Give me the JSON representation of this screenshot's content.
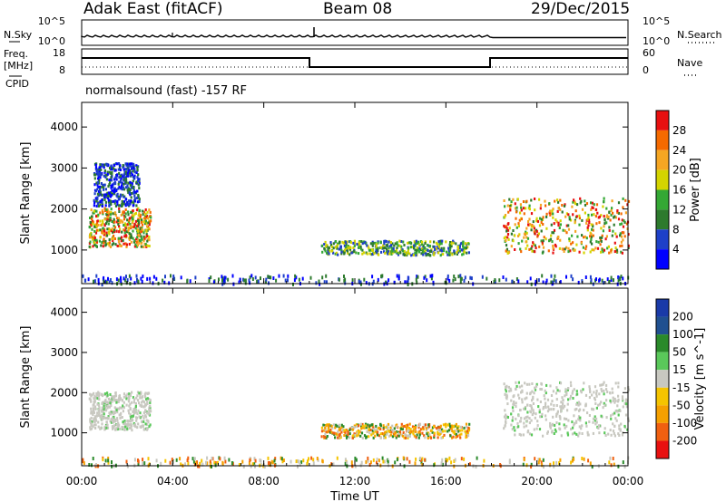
{
  "header": {
    "station": "Adak East (fitACF)",
    "beam": "Beam 08",
    "date": "29/Dec/2015"
  },
  "strips": {
    "nsky_label": "N.Sky",
    "nsearch_label": "N.Search",
    "freq_label_line1": "Freq.",
    "freq_label_line2": "[MHz]",
    "nave_label": "Nave",
    "cpid_label": "CPID",
    "cpid_text": "normalsound (fast) -157 RF",
    "noise_ticks_left": [
      "10^5",
      "10^0"
    ],
    "noise_ticks_right": [
      "10^5",
      "10^0"
    ],
    "freq_ticks_left": [
      "18",
      "8"
    ],
    "nave_ticks_right": [
      "60",
      "0"
    ]
  },
  "chart_data": [
    {
      "type": "heatmap",
      "title": "",
      "ylabel": "Slant Range [km]",
      "xlabel": "",
      "ylim": [
        180,
        4600
      ],
      "yticks": [
        "4000",
        "3000",
        "2000",
        "1000"
      ],
      "colorbar": {
        "label": "Power [dB]",
        "ticks": [
          "28",
          "24",
          "20",
          "16",
          "12",
          "8",
          "4"
        ],
        "range": [
          0,
          30
        ]
      },
      "regions": [
        {
          "t0": 0.3,
          "t1": 3.0,
          "r0": 1100,
          "r1": 2050,
          "level": "high"
        },
        {
          "t0": 0.5,
          "t1": 2.5,
          "r0": 2100,
          "r1": 3150,
          "level": "low"
        },
        {
          "t0": 10.5,
          "t1": 17.0,
          "r0": 900,
          "r1": 1250,
          "level": "mid"
        },
        {
          "t0": 18.5,
          "t1": 24.0,
          "r0": 950,
          "r1": 2300,
          "level": "high"
        },
        {
          "t0": 0.0,
          "t1": 24.0,
          "r0": 200,
          "r1": 420,
          "level": "low"
        }
      ]
    },
    {
      "type": "heatmap",
      "title": "",
      "ylabel": "Slant Range [km]",
      "xlabel": "Time UT",
      "ylim": [
        180,
        4600
      ],
      "yticks": [
        "4000",
        "3000",
        "2000",
        "1000"
      ],
      "xticks": [
        "00:00",
        "04:00",
        "08:00",
        "12:00",
        "16:00",
        "20:00",
        "00:00"
      ],
      "colorbar": {
        "label": "Velocity [m s^-1]",
        "ticks": [
          "200",
          "100",
          "50",
          "15",
          "-15",
          "-50",
          "-100",
          "-200"
        ],
        "range": [
          -250,
          250
        ]
      },
      "regions": [
        {
          "t0": 0.3,
          "t1": 3.0,
          "r0": 1100,
          "r1": 2050,
          "level": "ground"
        },
        {
          "t0": 10.5,
          "t1": 17.0,
          "r0": 900,
          "r1": 1250,
          "level": "neg"
        },
        {
          "t0": 18.5,
          "t1": 24.0,
          "r0": 950,
          "r1": 2300,
          "level": "ground"
        },
        {
          "t0": 0.0,
          "t1": 24.0,
          "r0": 200,
          "r1": 420,
          "level": "neg"
        }
      ]
    }
  ]
}
